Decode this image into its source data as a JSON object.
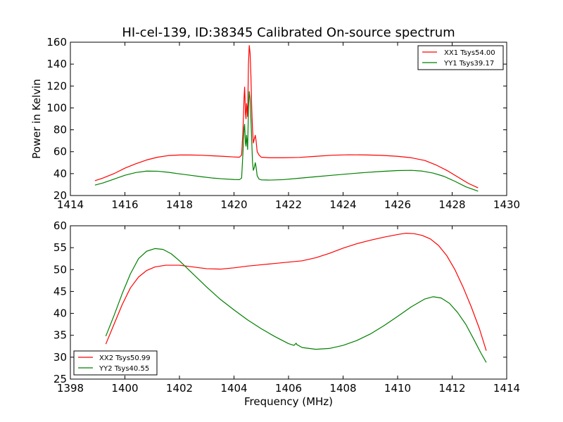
{
  "chart_data": [
    {
      "type": "line",
      "title": "HI-cel-139, ID:38345 Calibrated On-source spectrum",
      "xlabel": "",
      "ylabel": "Power in Kelvin",
      "xlim": [
        1414,
        1430
      ],
      "ylim": [
        20,
        160
      ],
      "xticks": [
        1414,
        1416,
        1418,
        1420,
        1422,
        1424,
        1426,
        1428,
        1430
      ],
      "yticks": [
        20,
        40,
        60,
        80,
        100,
        120,
        140,
        160
      ],
      "grid": false,
      "legend_position": "top-right",
      "series": [
        {
          "name": "XX1 Tsys54.00",
          "color": "#ff0000",
          "points": [
            [
              1414.9,
              33.5
            ],
            [
              1415.2,
              36
            ],
            [
              1415.6,
              40
            ],
            [
              1416.0,
              45
            ],
            [
              1416.4,
              49
            ],
            [
              1416.8,
              52.5
            ],
            [
              1417.2,
              55
            ],
            [
              1417.6,
              56.5
            ],
            [
              1418.0,
              57
            ],
            [
              1418.4,
              57
            ],
            [
              1418.8,
              56.8
            ],
            [
              1419.2,
              56.3
            ],
            [
              1419.6,
              55.8
            ],
            [
              1420.0,
              55.2
            ],
            [
              1420.2,
              55
            ],
            [
              1420.28,
              57
            ],
            [
              1420.33,
              80
            ],
            [
              1420.37,
              110
            ],
            [
              1420.39,
              119
            ],
            [
              1420.42,
              95
            ],
            [
              1420.44,
              90
            ],
            [
              1420.46,
              104
            ],
            [
              1420.48,
              100
            ],
            [
              1420.5,
              92
            ],
            [
              1420.53,
              140
            ],
            [
              1420.56,
              157
            ],
            [
              1420.59,
              150
            ],
            [
              1420.62,
              130
            ],
            [
              1420.65,
              100
            ],
            [
              1420.68,
              80
            ],
            [
              1420.71,
              68
            ],
            [
              1420.75,
              72
            ],
            [
              1420.78,
              75
            ],
            [
              1420.81,
              70
            ],
            [
              1420.85,
              60
            ],
            [
              1420.92,
              57
            ],
            [
              1421.0,
              55
            ],
            [
              1421.3,
              54.5
            ],
            [
              1421.8,
              54.5
            ],
            [
              1422.4,
              54.8
            ],
            [
              1423.0,
              55.8
            ],
            [
              1423.6,
              56.8
            ],
            [
              1424.2,
              57.2
            ],
            [
              1424.8,
              57.1
            ],
            [
              1425.4,
              56.7
            ],
            [
              1426.0,
              55.8
            ],
            [
              1426.5,
              54.5
            ],
            [
              1427.0,
              52
            ],
            [
              1427.4,
              48
            ],
            [
              1427.8,
              43
            ],
            [
              1428.2,
              37
            ],
            [
              1428.6,
              31
            ],
            [
              1428.95,
              27
            ]
          ]
        },
        {
          "name": "YY1 Tsys39.17",
          "color": "#008000",
          "points": [
            [
              1414.9,
              29.5
            ],
            [
              1415.2,
              31.5
            ],
            [
              1415.6,
              35
            ],
            [
              1416.0,
              38.5
            ],
            [
              1416.4,
              41
            ],
            [
              1416.8,
              42.3
            ],
            [
              1417.2,
              42.2
            ],
            [
              1417.6,
              41.2
            ],
            [
              1418.0,
              39.8
            ],
            [
              1418.4,
              38.5
            ],
            [
              1418.8,
              37.2
            ],
            [
              1419.2,
              36
            ],
            [
              1419.6,
              35.2
            ],
            [
              1420.0,
              34.6
            ],
            [
              1420.2,
              34.5
            ],
            [
              1420.28,
              36
            ],
            [
              1420.33,
              60
            ],
            [
              1420.37,
              82
            ],
            [
              1420.39,
              85
            ],
            [
              1420.42,
              68
            ],
            [
              1420.44,
              65
            ],
            [
              1420.46,
              75
            ],
            [
              1420.48,
              70
            ],
            [
              1420.5,
              62
            ],
            [
              1420.53,
              100
            ],
            [
              1420.56,
              115
            ],
            [
              1420.59,
              108
            ],
            [
              1420.62,
              90
            ],
            [
              1420.65,
              70
            ],
            [
              1420.68,
              50
            ],
            [
              1420.71,
              43
            ],
            [
              1420.75,
              46
            ],
            [
              1420.78,
              50
            ],
            [
              1420.81,
              46
            ],
            [
              1420.85,
              38
            ],
            [
              1420.92,
              35
            ],
            [
              1421.0,
              34.3
            ],
            [
              1421.3,
              34.1
            ],
            [
              1421.8,
              34.5
            ],
            [
              1422.4,
              35.8
            ],
            [
              1423.0,
              37.2
            ],
            [
              1423.6,
              38.5
            ],
            [
              1424.2,
              39.8
            ],
            [
              1424.8,
              41
            ],
            [
              1425.4,
              42
            ],
            [
              1426.0,
              42.8
            ],
            [
              1426.5,
              43
            ],
            [
              1426.9,
              42.3
            ],
            [
              1427.3,
              40.5
            ],
            [
              1427.7,
              37.5
            ],
            [
              1428.1,
              33
            ],
            [
              1428.5,
              28
            ],
            [
              1428.95,
              24
            ]
          ]
        }
      ]
    },
    {
      "type": "line",
      "title": "",
      "xlabel": "Frequency (MHz)",
      "ylabel": "",
      "xlim": [
        1398,
        1414
      ],
      "ylim": [
        25,
        60
      ],
      "xticks": [
        1398,
        1400,
        1402,
        1404,
        1406,
        1408,
        1410,
        1412,
        1414
      ],
      "yticks": [
        25,
        30,
        35,
        40,
        45,
        50,
        55,
        60
      ],
      "grid": false,
      "legend_position": "bottom-left",
      "series": [
        {
          "name": "XX2 Tsys50.99",
          "color": "#ff0000",
          "points": [
            [
              1399.3,
              33
            ],
            [
              1399.6,
              37.5
            ],
            [
              1399.9,
              42
            ],
            [
              1400.2,
              45.8
            ],
            [
              1400.5,
              48.3
            ],
            [
              1400.8,
              49.8
            ],
            [
              1401.1,
              50.6
            ],
            [
              1401.5,
              51
            ],
            [
              1402.0,
              51
            ],
            [
              1402.5,
              50.6
            ],
            [
              1403.0,
              50.2
            ],
            [
              1403.5,
              50.1
            ],
            [
              1404.0,
              50.4
            ],
            [
              1404.5,
              50.8
            ],
            [
              1405.0,
              51.1
            ],
            [
              1405.5,
              51.4
            ],
            [
              1406.0,
              51.7
            ],
            [
              1406.5,
              52
            ],
            [
              1407.0,
              52.7
            ],
            [
              1407.5,
              53.7
            ],
            [
              1408.0,
              54.9
            ],
            [
              1408.5,
              55.9
            ],
            [
              1409.0,
              56.7
            ],
            [
              1409.5,
              57.4
            ],
            [
              1410.0,
              58
            ],
            [
              1410.3,
              58.3
            ],
            [
              1410.6,
              58.2
            ],
            [
              1410.9,
              57.8
            ],
            [
              1411.2,
              57
            ],
            [
              1411.5,
              55.5
            ],
            [
              1411.8,
              53.2
            ],
            [
              1412.1,
              50
            ],
            [
              1412.4,
              46
            ],
            [
              1412.7,
              41.5
            ],
            [
              1413.0,
              36.5
            ],
            [
              1413.25,
              31.5
            ]
          ]
        },
        {
          "name": "YY2 Tsys40.55",
          "color": "#008000",
          "points": [
            [
              1399.3,
              34.8
            ],
            [
              1399.6,
              39.5
            ],
            [
              1399.9,
              44.5
            ],
            [
              1400.2,
              49
            ],
            [
              1400.5,
              52.5
            ],
            [
              1400.8,
              54.2
            ],
            [
              1401.1,
              54.8
            ],
            [
              1401.4,
              54.6
            ],
            [
              1401.7,
              53.6
            ],
            [
              1402.0,
              52
            ],
            [
              1402.5,
              49
            ],
            [
              1403.0,
              46
            ],
            [
              1403.5,
              43.2
            ],
            [
              1404.0,
              40.8
            ],
            [
              1404.5,
              38.5
            ],
            [
              1405.0,
              36.5
            ],
            [
              1405.5,
              34.7
            ],
            [
              1406.0,
              33.1
            ],
            [
              1406.2,
              32.7
            ],
            [
              1406.28,
              33.2
            ],
            [
              1406.3,
              32.9
            ],
            [
              1406.5,
              32.2
            ],
            [
              1407.0,
              31.8
            ],
            [
              1407.5,
              32
            ],
            [
              1408.0,
              32.7
            ],
            [
              1408.5,
              33.8
            ],
            [
              1409.0,
              35.3
            ],
            [
              1409.5,
              37.2
            ],
            [
              1410.0,
              39.3
            ],
            [
              1410.5,
              41.5
            ],
            [
              1411.0,
              43.3
            ],
            [
              1411.3,
              43.8
            ],
            [
              1411.6,
              43.5
            ],
            [
              1411.9,
              42.3
            ],
            [
              1412.2,
              40.2
            ],
            [
              1412.5,
              37.5
            ],
            [
              1412.8,
              34
            ],
            [
              1413.05,
              31
            ],
            [
              1413.25,
              28.8
            ]
          ]
        }
      ]
    }
  ]
}
